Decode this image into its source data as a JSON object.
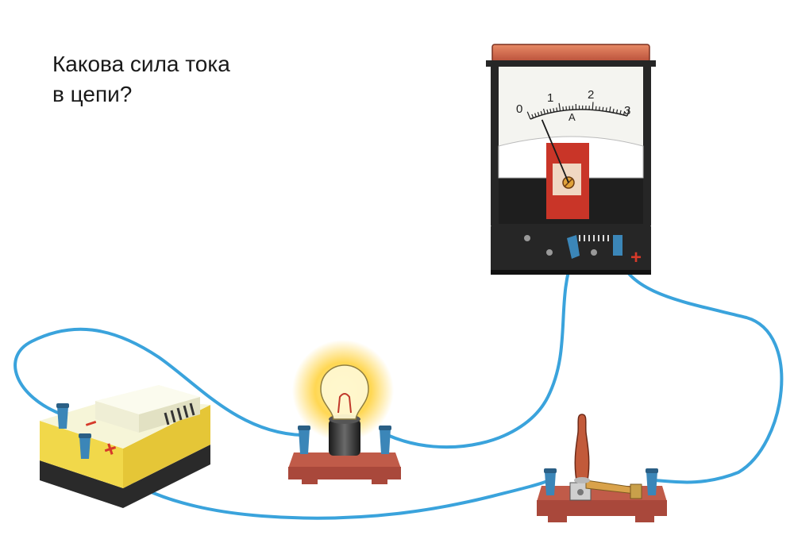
{
  "question": {
    "line1": "Какова сила тока",
    "line2": "в цепи?"
  },
  "ammeter": {
    "scale_labels": [
      "0",
      "1",
      "2",
      "3"
    ],
    "unit": "A",
    "needle_value": 0.4,
    "scale_max": 3
  },
  "battery": {
    "minus_sign": "−",
    "plus_sign": "+"
  },
  "ammeter_terminal_sign": "+",
  "colors": {
    "wire": "#3aa3dc",
    "clip": "#3b86b8",
    "wood": "#a9483b",
    "battery_top": "#f6f5d8",
    "battery_body": "#f1d84a",
    "battery_base": "#2a2a2a",
    "meter_body": "#262626",
    "meter_lid": "#d4694b",
    "sign_red": "#d63a2a"
  }
}
